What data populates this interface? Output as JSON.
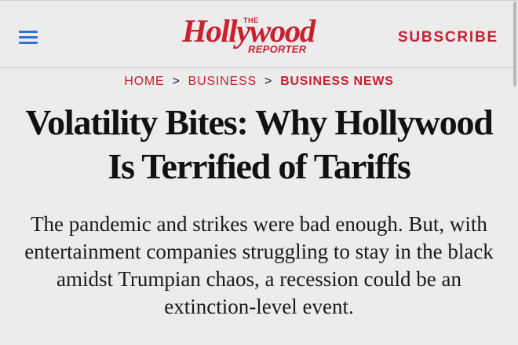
{
  "header": {
    "menu_icon": "hamburger-menu-icon",
    "logo": {
      "the": "THE",
      "main": "Hollywood",
      "sub": "REPORTER"
    },
    "subscribe_label": "SUBSCRIBE"
  },
  "breadcrumb": {
    "items": [
      "HOME",
      "BUSINESS",
      "BUSINESS NEWS"
    ],
    "separator": ">"
  },
  "article": {
    "headline": "Volatility Bites: Why Hollywood Is Terrified of Tariffs",
    "dek": "The pandemic and strikes were bad enough. But, with entertainment companies struggling to stay in the black amidst Trumpian chaos, a recession could be an extinction-level event."
  },
  "colors": {
    "brand_red": "#c8202f",
    "menu_blue": "#2f6fd6",
    "background": "#ececec",
    "text": "#111111"
  }
}
